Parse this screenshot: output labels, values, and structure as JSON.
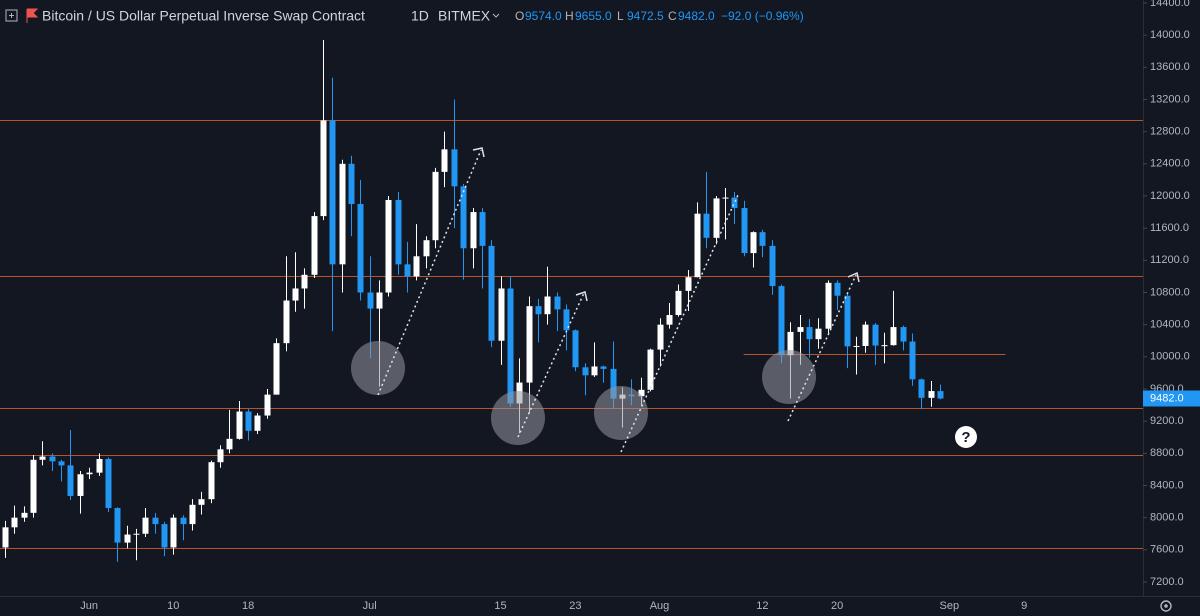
{
  "header": {
    "symbol": "Bitcoin / US Dollar Perpetual Inverse Swap Contract",
    "interval": "1D",
    "exchange": "BITMEX",
    "ohlc": [
      {
        "key": "O",
        "value": "9574.0"
      },
      {
        "key": "H",
        "value": "9655.0"
      },
      {
        "key": "L",
        "value": "9472.5"
      },
      {
        "key": "C",
        "value": "9482.0"
      }
    ],
    "change": "−92.0 (−0.96%)"
  },
  "chart_data": {
    "type": "candlestick",
    "up_color": "#ffffff",
    "down_color": "#2196f3",
    "level_color": "#b8532c",
    "categories": [
      null,
      null,
      null,
      null,
      null,
      null,
      null,
      null,
      null,
      "Jun",
      null,
      null,
      null,
      null,
      null,
      null,
      null,
      null,
      "10",
      null,
      null,
      null,
      null,
      null,
      null,
      null,
      "18",
      null,
      null,
      null,
      null,
      null,
      null,
      null,
      null,
      null,
      null,
      null,
      null,
      "Jul",
      null,
      null,
      null,
      null,
      null,
      null,
      null,
      null,
      null,
      null,
      null,
      null,
      null,
      "15",
      null,
      null,
      null,
      null,
      null,
      null,
      null,
      "23",
      null,
      null,
      null,
      null,
      null,
      null,
      null,
      null,
      "Aug",
      null,
      null,
      null,
      null,
      null,
      null,
      null,
      null,
      null,
      null,
      "12",
      null,
      null,
      null,
      null,
      null,
      null,
      null,
      "20",
      null,
      null,
      null,
      null,
      null,
      null,
      null,
      null,
      null,
      null,
      null,
      "Sep",
      null,
      null,
      null,
      null,
      null,
      null,
      null,
      "9"
    ],
    "open": [
      7630,
      7880,
      8000,
      8060,
      8720,
      8760,
      8700,
      8650,
      8270,
      8540,
      8560,
      8730,
      8120,
      7690,
      7790,
      7800,
      8000,
      7920,
      7630,
      8000,
      7920,
      8160,
      8230,
      8690,
      8850,
      8980,
      9320,
      9080,
      9270,
      9530,
      10170,
      10700,
      10850,
      11020,
      11750,
      12940,
      11150,
      12400,
      11900,
      10800,
      10600,
      10800,
      11950,
      11150,
      11000,
      11250,
      11450,
      12300,
      12580,
      12120,
      11350,
      11800,
      11380,
      10200,
      10850,
      9420,
      9680,
      10630,
      10530,
      10750,
      10590,
      10330,
      9870,
      9770,
      9880,
      9850,
      9480,
      9530,
      9510,
      9590,
      10090,
      10400,
      10520,
      10820,
      10990,
      11780,
      11480,
      11970,
      11980,
      11850,
      11290,
      11550,
      11380,
      10880,
      10020,
      10310,
      10370,
      10220,
      10350,
      10920,
      10760,
      10130,
      10135,
      10400,
      10140,
      10145,
      10370,
      10190,
      9720,
      9490,
      9574,
      null,
      null,
      null,
      null,
      null,
      null,
      null,
      null,
      null
    ],
    "high": [
      7960,
      8150,
      8140,
      8780,
      8950,
      8800,
      8720,
      9090,
      8580,
      8620,
      8800,
      8750,
      8130,
      7900,
      7860,
      8120,
      8060,
      7950,
      8040,
      8030,
      8230,
      8320,
      8710,
      8900,
      9340,
      9450,
      9350,
      9300,
      9600,
      10230,
      11250,
      11300,
      11100,
      11800,
      13940,
      13470,
      12450,
      12500,
      12200,
      11250,
      10950,
      12000,
      12050,
      11430,
      11650,
      11500,
      12350,
      12800,
      13200,
      12150,
      11850,
      11850,
      11450,
      11000,
      11000,
      9980,
      10750,
      10720,
      11120,
      10800,
      10650,
      10340,
      9920,
      10180,
      9890,
      10190,
      9620,
      9720,
      9740,
      10100,
      10480,
      10670,
      10900,
      11080,
      11920,
      12300,
      12000,
      12100,
      12050,
      11940,
      11560,
      11580,
      11450,
      10900,
      10430,
      10520,
      10470,
      10480,
      10950,
      10950,
      10790,
      10250,
      10440,
      10420,
      10300,
      10820,
      10390,
      10290,
      9730,
      9700,
      9655,
      null,
      null,
      null,
      null,
      null,
      null,
      null,
      null,
      null
    ],
    "low": [
      7500,
      7800,
      7950,
      8000,
      8650,
      8580,
      8450,
      8220,
      8050,
      8480,
      8520,
      8070,
      7450,
      7620,
      7470,
      7760,
      7800,
      7520,
      7540,
      7720,
      7840,
      8040,
      8180,
      8620,
      8800,
      8970,
      8960,
      9040,
      9230,
      9530,
      10070,
      10560,
      10600,
      10980,
      11700,
      10320,
      10800,
      11500,
      10700,
      9980,
      9630,
      10750,
      11020,
      10800,
      10950,
      11100,
      11350,
      12110,
      11600,
      10960,
      11100,
      10850,
      10120,
      9900,
      9380,
      9050,
      9300,
      10180,
      10400,
      10320,
      10080,
      9820,
      9520,
      9750,
      9680,
      9360,
      9120,
      9400,
      9390,
      9570,
      9880,
      10350,
      10500,
      10570,
      10990,
      11350,
      11400,
      11460,
      11650,
      11250,
      11110,
      11240,
      10770,
      9920,
      9480,
      9900,
      9990,
      10100,
      10270,
      10580,
      9860,
      9780,
      10050,
      9900,
      9920,
      10140,
      10080,
      9640,
      9350,
      9380,
      9472.5,
      null,
      null,
      null,
      null,
      null,
      null,
      null,
      null,
      null
    ],
    "close": [
      7880,
      8000,
      8060,
      8720,
      8760,
      8700,
      8650,
      8270,
      8540,
      8560,
      8730,
      8120,
      7690,
      7790,
      7800,
      8000,
      7920,
      7630,
      8000,
      7920,
      8160,
      8230,
      8690,
      8850,
      8980,
      9320,
      9080,
      9270,
      9530,
      10170,
      10700,
      10850,
      11020,
      11750,
      12940,
      11150,
      12400,
      11900,
      10800,
      10600,
      10800,
      11950,
      11150,
      11000,
      11250,
      11450,
      12300,
      12580,
      12120,
      11350,
      11800,
      11380,
      10200,
      10850,
      9420,
      9680,
      10630,
      10530,
      10750,
      10590,
      10330,
      9870,
      9770,
      9880,
      9850,
      9480,
      9530,
      9510,
      9590,
      10090,
      10400,
      10520,
      10820,
      10990,
      11780,
      11480,
      11970,
      11980,
      11850,
      11290,
      11550,
      11380,
      10880,
      10020,
      10310,
      10370,
      10220,
      10350,
      10920,
      10760,
      10130,
      10135,
      10400,
      10140,
      10145,
      10370,
      10190,
      9720,
      9490,
      9574,
      9482,
      null,
      null,
      null,
      null,
      null,
      null,
      null,
      null,
      null
    ],
    "last_price": {
      "value": 9482,
      "label": "9482.0"
    },
    "levels": [
      {
        "value": 12940
      },
      {
        "value": 11000
      },
      {
        "value": 10040,
        "from": 79,
        "to": 107
      },
      {
        "value": 9360
      },
      {
        "value": 8780
      },
      {
        "value": 7620
      }
    ],
    "annotation": "?",
    "ylim": [
      7026,
      14437
    ],
    "yticks": [
      {
        "value": 7200,
        "label": "7200.0"
      },
      {
        "value": 7600,
        "label": "7600.0"
      },
      {
        "value": 8000,
        "label": "8000.0"
      },
      {
        "value": 8400,
        "label": "8400.0"
      },
      {
        "value": 8800,
        "label": "8800.0"
      },
      {
        "value": 9200,
        "label": "9200.0"
      },
      {
        "value": 9600,
        "label": "9600.0"
      },
      {
        "value": 10000,
        "label": "10000.0"
      },
      {
        "value": 10400,
        "label": "10400.0"
      },
      {
        "value": 10800,
        "label": "10800.0"
      },
      {
        "value": 11200,
        "label": "11200.0"
      },
      {
        "value": 11600,
        "label": "11600.0"
      },
      {
        "value": 12000,
        "label": "12000.0"
      },
      {
        "value": 12400,
        "label": "12400.0"
      },
      {
        "value": 12800,
        "label": "12800.0"
      },
      {
        "value": 13200,
        "label": "13200.0"
      },
      {
        "value": 13600,
        "label": "13600.0"
      },
      {
        "value": 14000,
        "label": "14000.0"
      },
      {
        "value": 14400,
        "label": "14400.0"
      }
    ]
  }
}
